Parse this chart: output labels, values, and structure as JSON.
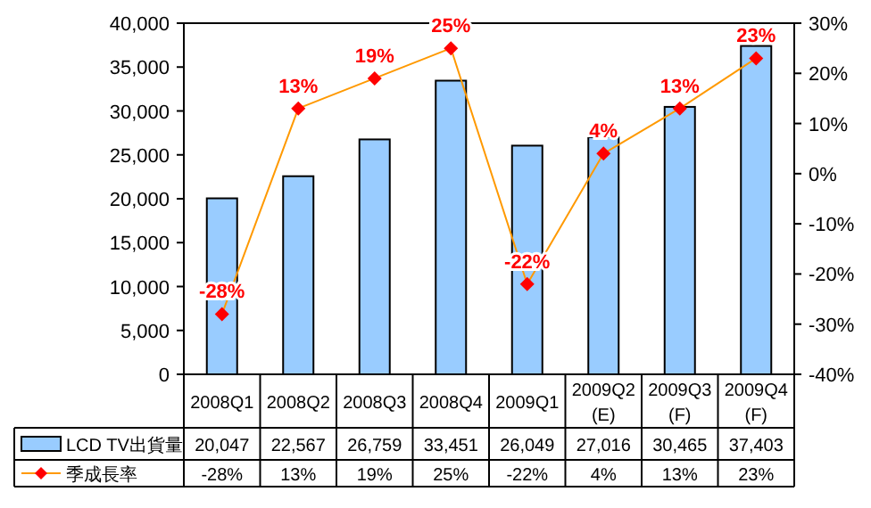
{
  "chart_data": {
    "type": "bar",
    "categories": [
      "2008Q1",
      "2008Q2",
      "2008Q3",
      "2008Q4",
      "2009Q1",
      "2009Q2 (E)",
      "2009Q3 (F)",
      "2009Q4 (F)"
    ],
    "series": [
      {
        "name": "LCD TV出貨量",
        "type": "bar",
        "color": "#99ccff",
        "values": [
          20047,
          22567,
          26759,
          33451,
          26049,
          27016,
          30465,
          37403
        ],
        "value_labels": [
          "20,047",
          "22,567",
          "26,759",
          "33,451",
          "26,049",
          "27,016",
          "30,465",
          "37,403"
        ]
      },
      {
        "name": "季成長率",
        "type": "line",
        "axis": "y2",
        "color": "#ff9900",
        "marker": "diamond",
        "values": [
          -28,
          13,
          19,
          25,
          -22,
          4,
          13,
          23
        ],
        "value_labels": [
          "-28%",
          "13%",
          "19%",
          "25%",
          "-22%",
          "4%",
          "13%",
          "23%"
        ]
      }
    ],
    "ylim": [
      0,
      40000
    ],
    "yticks": [
      {
        "value": 0,
        "label": "0"
      },
      {
        "value": 5000,
        "label": "5,000"
      },
      {
        "value": 10000,
        "label": "10,000"
      },
      {
        "value": 15000,
        "label": "15,000"
      },
      {
        "value": 20000,
        "label": "20,000"
      },
      {
        "value": 25000,
        "label": "25,000"
      },
      {
        "value": 30000,
        "label": "30,000"
      },
      {
        "value": 35000,
        "label": "35,000"
      },
      {
        "value": 40000,
        "label": "40,000"
      }
    ],
    "y2lim": [
      -40,
      30
    ],
    "y2ticks": [
      {
        "value": -40,
        "label": "-40%"
      },
      {
        "value": -30,
        "label": "-30%"
      },
      {
        "value": -20,
        "label": "-20%"
      },
      {
        "value": -10,
        "label": "-10%"
      },
      {
        "value": 0,
        "label": "0%"
      },
      {
        "value": 10,
        "label": "10%"
      },
      {
        "value": 20,
        "label": "20%"
      },
      {
        "value": 30,
        "label": "30%"
      }
    ],
    "legend": "bottom left",
    "grid": false
  }
}
